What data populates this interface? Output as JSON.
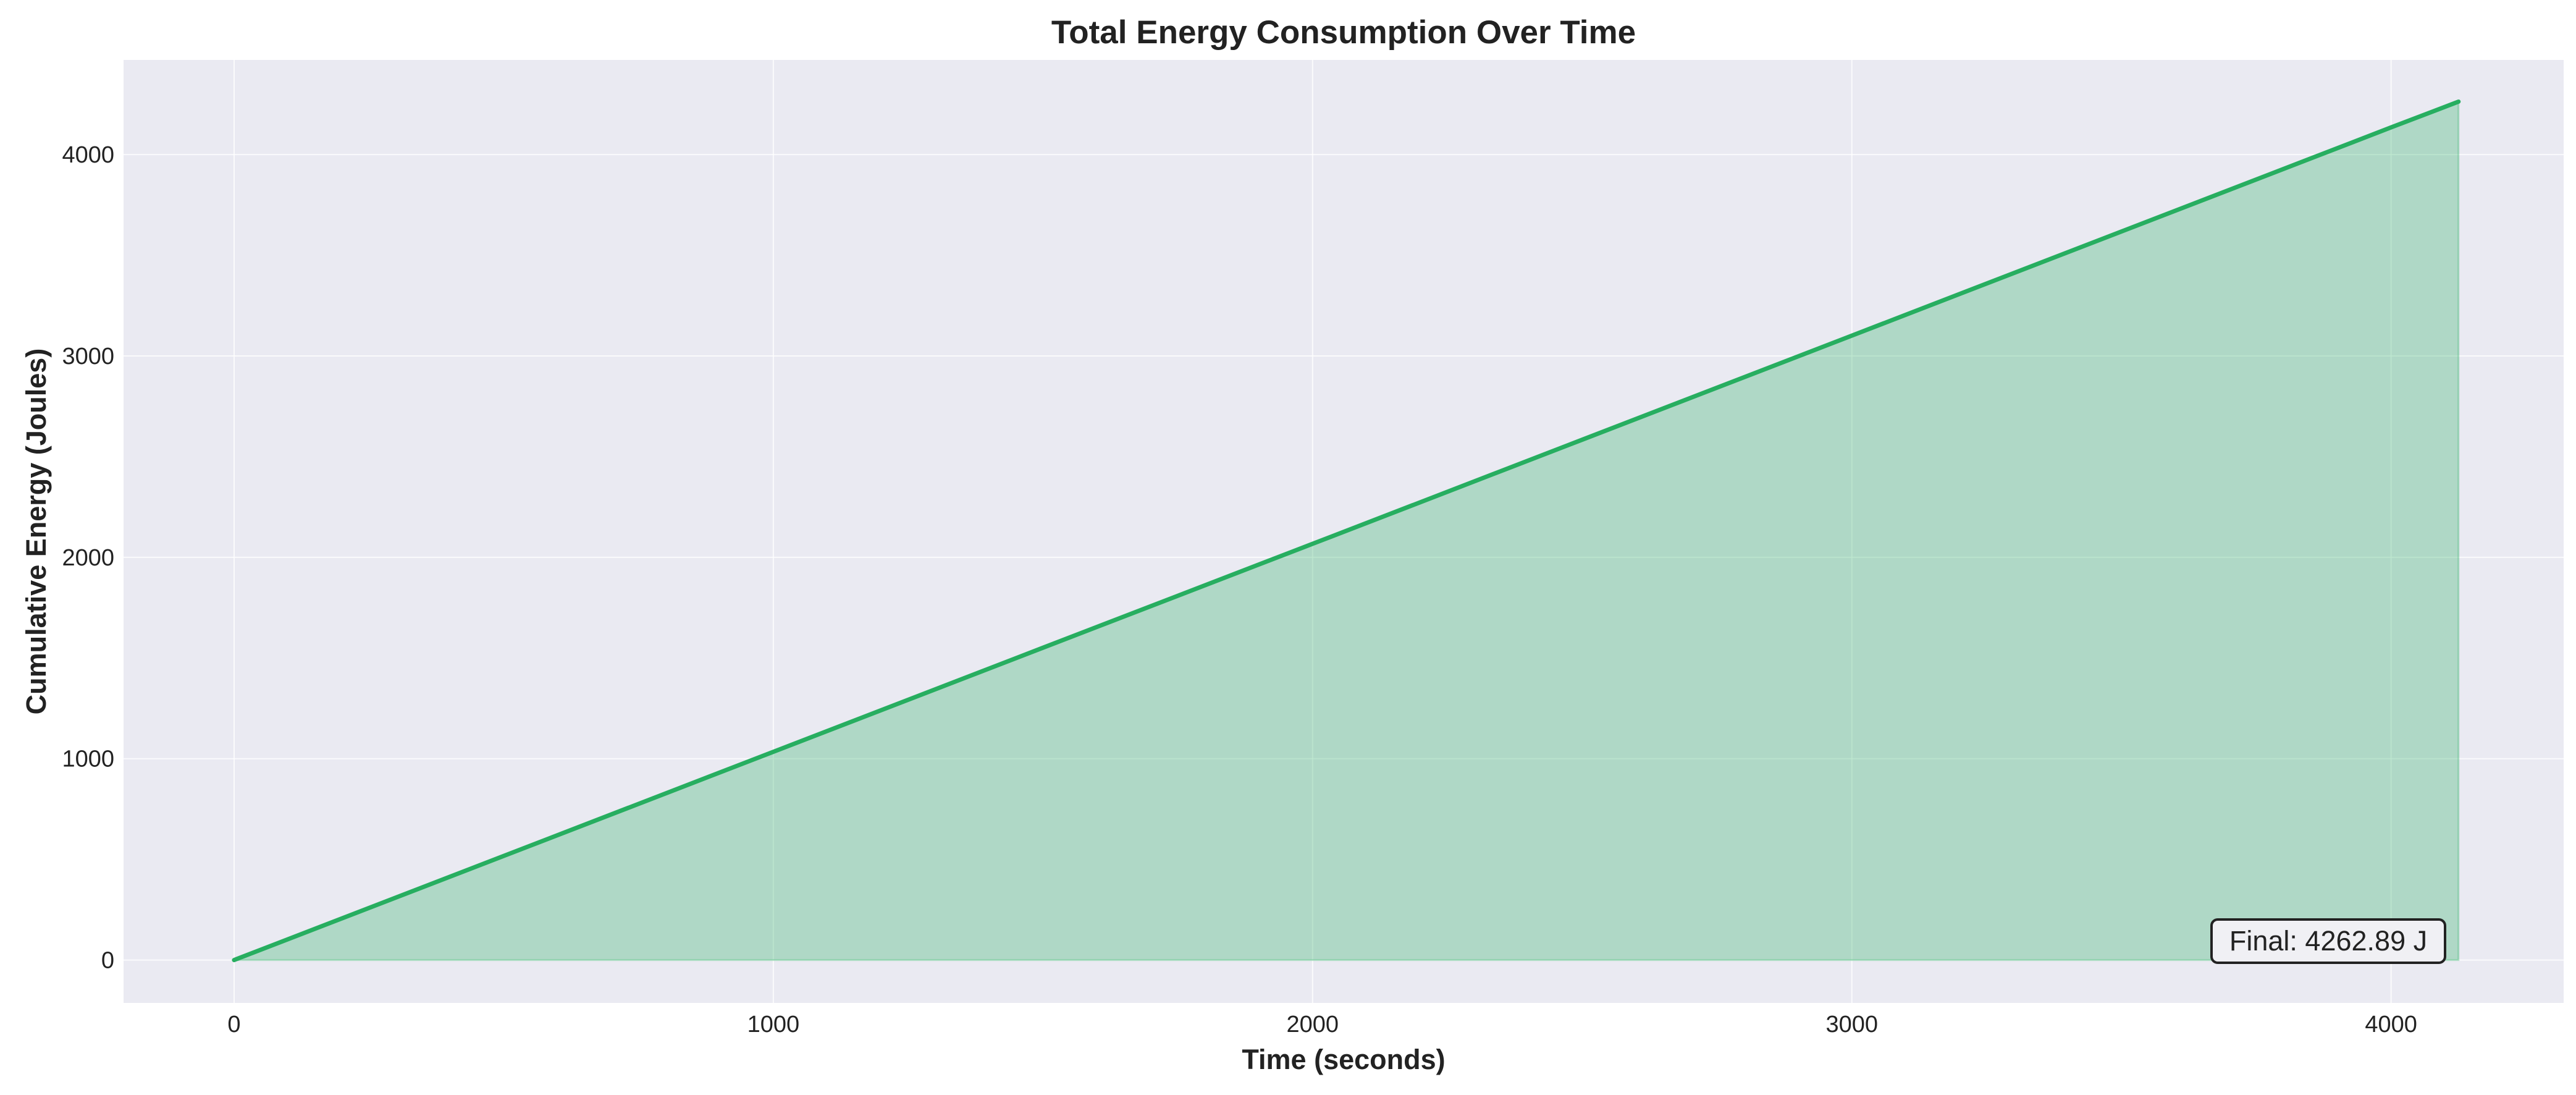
{
  "chart_data": {
    "type": "area",
    "title": "Total Energy Consumption Over Time",
    "xlabel": "Time (seconds)",
    "ylabel": "Cumulative Energy (Joules)",
    "xlim": [
      -205,
      4320
    ],
    "ylim": [
      -213,
      4470
    ],
    "xticks": [
      0,
      1000,
      2000,
      3000,
      4000
    ],
    "yticks": [
      0,
      1000,
      2000,
      3000,
      4000
    ],
    "grid": true,
    "series": [
      {
        "x": [
          0,
          500,
          1000,
          1500,
          2000,
          2500,
          3000,
          3500,
          4000,
          4125
        ],
        "y": [
          0,
          517,
          1034,
          1551,
          2067,
          2584,
          3101,
          3618,
          4135,
          4262.89
        ]
      }
    ],
    "annotation": {
      "text": "Final: 4262.89 J",
      "placement": "bottom-right"
    },
    "colors": {
      "line": "#27ae60",
      "fill": "#27ae60",
      "plot_background": "#eaeaf2",
      "grid": "#ffffff",
      "annotation_border": "#222222",
      "annotation_fill": "#f0f0f4"
    }
  }
}
